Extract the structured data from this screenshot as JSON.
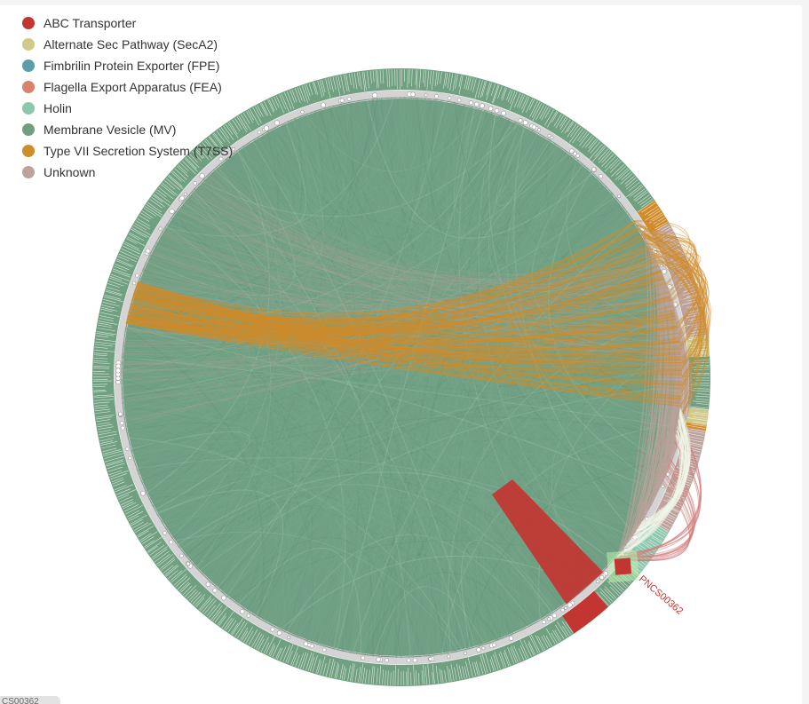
{
  "legend": {
    "items": [
      {
        "label": "ABC Transporter",
        "color": "#c23531"
      },
      {
        "label": "Alternate Sec Pathway (SecA2)",
        "color": "#d1c98a"
      },
      {
        "label": "Fimbrilin Protein Exporter (FPE)",
        "color": "#5b9eaa"
      },
      {
        "label": "Flagella Export Apparatus (FEA)",
        "color": "#d9846a"
      },
      {
        "label": "Holin",
        "color": "#8cc7ae"
      },
      {
        "label": "Membrane Vesicle (MV)",
        "color": "#70a080"
      },
      {
        "label": "Type VII Secretion System (T7SS)",
        "color": "#d08c2a"
      },
      {
        "label": "Unknown",
        "color": "#bea39c"
      }
    ]
  },
  "highlight": {
    "label": "PNCS00362",
    "color": "#c23531",
    "halo_color": "#b9f0b0"
  },
  "footer": {
    "tab_text": "CS00362"
  }
}
